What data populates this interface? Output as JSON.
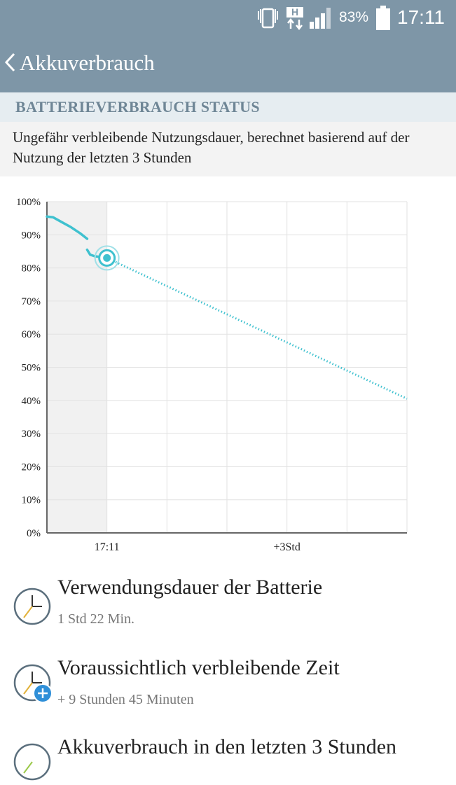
{
  "status_bar": {
    "battery_percent": "83%",
    "time": "17:11",
    "network_type": "H",
    "icons": [
      "vibrate-icon",
      "data-transfer-icon",
      "signal-icon",
      "battery-icon"
    ]
  },
  "title_bar": {
    "title": "Akkuverbrauch",
    "back_icon": "chevron-left-icon"
  },
  "section": {
    "header": "BATTERIEVERBRAUCH STATUS",
    "description": "Ungefähr verbleibende Nutzungsdauer, berechnet basierend auf der Nutzung der letzten 3 Stunden"
  },
  "chart_data": {
    "type": "line",
    "title": "",
    "xlabel": "",
    "ylabel": "",
    "ylim": [
      0,
      100
    ],
    "y_ticks": [
      "100%",
      "90%",
      "80%",
      "70%",
      "60%",
      "50%",
      "40%",
      "30%",
      "20%",
      "10%",
      "0%"
    ],
    "x_tick_labels": [
      "17:11",
      "+3Std"
    ],
    "x_range_hours": [
      -1,
      5
    ],
    "grid": true,
    "series": [
      {
        "style": "solid",
        "color": "#3fc1cf",
        "x": [
          -1.0,
          -0.9,
          -0.75,
          -0.6,
          -0.45,
          -0.33
        ],
        "y": [
          95.5,
          95.3,
          93.8,
          92.3,
          90.5,
          88.8
        ]
      },
      {
        "style": "solid",
        "color": "#3fc1cf",
        "x": [
          -0.33,
          -0.28,
          -0.2,
          -0.1,
          0.0
        ],
        "y": [
          85.5,
          84.0,
          83.5,
          83.3,
          83.0
        ]
      },
      {
        "style": "dotted",
        "color": "#3fc1cf",
        "x": [
          0.0,
          5.0
        ],
        "y": [
          83.0,
          40.5
        ]
      }
    ],
    "current_marker": {
      "x": 0.0,
      "y": 83.0
    },
    "shaded_history": {
      "from": -1.0,
      "to": 0.0
    }
  },
  "info_items": [
    {
      "title": "Verwendungsdauer der Batterie",
      "value": "1 Std 22 Min.",
      "icon": "clock-icon"
    },
    {
      "title": "Voraussichtlich verbleibende Zeit",
      "value": "+ 9 Stunden 45 Minuten",
      "icon": "clock-plus-icon"
    },
    {
      "title": "Akkuverbrauch in den letzten 3 Stunden",
      "value": "",
      "icon": "clock-icon"
    }
  ],
  "colors": {
    "app_bar": "#7e96a7",
    "section_header_bg": "#e6edf1",
    "section_header_text": "#6f8696",
    "accent": "#3fc1cf"
  }
}
